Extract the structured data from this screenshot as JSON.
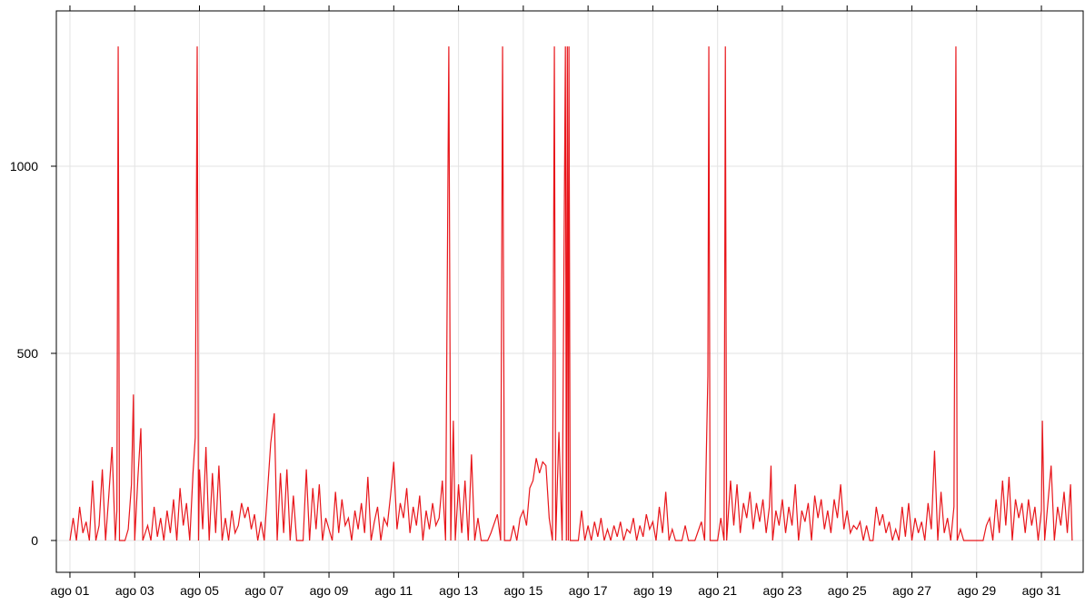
{
  "chart_data": {
    "type": "line",
    "color": "#e8161b",
    "grid": true,
    "xlim": [
      0.58,
      32.29
    ],
    "ylim": [
      -85,
      1415
    ],
    "xticks": [
      {
        "value": 1,
        "label": "ago 01"
      },
      {
        "value": 3,
        "label": "ago 03"
      },
      {
        "value": 5,
        "label": "ago 05"
      },
      {
        "value": 7,
        "label": "ago 07"
      },
      {
        "value": 9,
        "label": "ago 09"
      },
      {
        "value": 11,
        "label": "ago 11"
      },
      {
        "value": 13,
        "label": "ago 13"
      },
      {
        "value": 15,
        "label": "ago 15"
      },
      {
        "value": 17,
        "label": "ago 17"
      },
      {
        "value": 19,
        "label": "ago 19"
      },
      {
        "value": 21,
        "label": "ago 21"
      },
      {
        "value": 23,
        "label": "ago 23"
      },
      {
        "value": 25,
        "label": "ago 25"
      },
      {
        "value": 27,
        "label": "ago 27"
      },
      {
        "value": 29,
        "label": "ago 29"
      },
      {
        "value": 31,
        "label": "ago 31"
      }
    ],
    "yticks": [
      0,
      500,
      1000
    ],
    "x": [
      1,
      1.1,
      1.2,
      1.3,
      1.4,
      1.5,
      1.6,
      1.7,
      1.8,
      1.9,
      2,
      2.1,
      2.2,
      2.3,
      2.4,
      2.45,
      2.49,
      2.53,
      2.7,
      2.8,
      2.9,
      2.96,
      3,
      3.1,
      3.19,
      3.25,
      3.4,
      3.5,
      3.6,
      3.7,
      3.8,
      3.9,
      4,
      4.1,
      4.2,
      4.3,
      4.4,
      4.5,
      4.6,
      4.7,
      4.8,
      4.87,
      4.93,
      4.97,
      5,
      5.1,
      5.2,
      5.3,
      5.4,
      5.5,
      5.6,
      5.7,
      5.8,
      5.9,
      6,
      6.1,
      6.2,
      6.3,
      6.4,
      6.5,
      6.6,
      6.7,
      6.8,
      6.9,
      7,
      7.2,
      7.31,
      7.4,
      7.5,
      7.6,
      7.7,
      7.8,
      7.9,
      8,
      8.2,
      8.3,
      8.4,
      8.5,
      8.6,
      8.7,
      8.8,
      8.9,
      9,
      9.1,
      9.2,
      9.3,
      9.4,
      9.5,
      9.6,
      9.7,
      9.8,
      9.9,
      10,
      10.1,
      10.2,
      10.3,
      10.4,
      10.5,
      10.6,
      10.7,
      10.8,
      10.9,
      11,
      11.1,
      11.2,
      11.3,
      11.4,
      11.5,
      11.6,
      11.7,
      11.8,
      11.9,
      12,
      12.1,
      12.2,
      12.3,
      12.4,
      12.5,
      12.6,
      12.7,
      12.76,
      12.84,
      12.9,
      13,
      13.1,
      13.2,
      13.3,
      13.4,
      13.5,
      13.6,
      13.7,
      13.9,
      14,
      14.2,
      14.3,
      14.36,
      14.42,
      14.6,
      14.7,
      14.8,
      14.9,
      15,
      15.1,
      15.2,
      15.3,
      15.4,
      15.5,
      15.6,
      15.7,
      15.8,
      15.9,
      15.96,
      16,
      16.1,
      16.2,
      16.3,
      16.33,
      16.36,
      16.39,
      16.41,
      16.45,
      16.6,
      16.7,
      16.8,
      16.9,
      17,
      17.1,
      17.2,
      17.3,
      17.4,
      17.5,
      17.6,
      17.7,
      17.8,
      17.9,
      18,
      18.1,
      18.2,
      18.3,
      18.4,
      18.5,
      18.6,
      18.7,
      18.8,
      18.9,
      19,
      19.1,
      19.2,
      19.3,
      19.4,
      19.5,
      19.6,
      19.7,
      19.9,
      20,
      20.1,
      20.3,
      20.5,
      20.6,
      20.7,
      20.73,
      20.77,
      21,
      21.1,
      21.2,
      21.24,
      21.28,
      21.4,
      21.5,
      21.6,
      21.7,
      21.8,
      21.9,
      22,
      22.1,
      22.2,
      22.3,
      22.4,
      22.5,
      22.6,
      22.65,
      22.7,
      22.8,
      22.9,
      23,
      23.1,
      23.2,
      23.3,
      23.4,
      23.5,
      23.6,
      23.7,
      23.8,
      23.9,
      24,
      24.1,
      24.2,
      24.3,
      24.4,
      24.5,
      24.6,
      24.7,
      24.8,
      24.9,
      25,
      25.1,
      25.2,
      25.3,
      25.4,
      25.5,
      25.6,
      25.7,
      25.8,
      25.9,
      26,
      26.1,
      26.2,
      26.3,
      26.4,
      26.5,
      26.6,
      26.7,
      26.8,
      26.9,
      27,
      27.1,
      27.2,
      27.3,
      27.4,
      27.5,
      27.6,
      27.7,
      27.8,
      27.9,
      28,
      28.1,
      28.2,
      28.3,
      28.36,
      28.4,
      28.5,
      28.6,
      29.2,
      29.3,
      29.4,
      29.5,
      29.6,
      29.7,
      29.8,
      29.9,
      30,
      30.1,
      30.2,
      30.3,
      30.4,
      30.5,
      30.6,
      30.7,
      30.8,
      30.9,
      31,
      31.03,
      31.1,
      31.2,
      31.3,
      31.4,
      31.5,
      31.6,
      31.7,
      31.8,
      31.9,
      31.95
    ],
    "values": [
      0,
      60,
      0,
      90,
      20,
      50,
      0,
      160,
      0,
      40,
      190,
      0,
      120,
      250,
      0,
      80,
      1320,
      0,
      0,
      30,
      150,
      390,
      0,
      170,
      300,
      0,
      40,
      0,
      90,
      10,
      60,
      0,
      80,
      20,
      110,
      0,
      140,
      40,
      100,
      0,
      180,
      275,
      1320,
      0,
      190,
      30,
      250,
      0,
      180,
      20,
      200,
      0,
      60,
      0,
      80,
      20,
      40,
      100,
      60,
      90,
      30,
      70,
      0,
      50,
      0,
      260,
      340,
      0,
      180,
      20,
      190,
      0,
      120,
      0,
      0,
      190,
      0,
      140,
      30,
      150,
      0,
      60,
      30,
      0,
      130,
      20,
      110,
      40,
      60,
      0,
      80,
      30,
      100,
      20,
      170,
      0,
      50,
      90,
      0,
      60,
      40,
      120,
      210,
      30,
      100,
      60,
      140,
      20,
      90,
      40,
      120,
      0,
      80,
      30,
      100,
      40,
      60,
      160,
      0,
      1320,
      0,
      320,
      0,
      150,
      20,
      160,
      0,
      230,
      0,
      60,
      0,
      0,
      20,
      70,
      0,
      1320,
      0,
      0,
      40,
      0,
      60,
      80,
      40,
      140,
      160,
      220,
      180,
      210,
      200,
      60,
      0,
      1320,
      0,
      290,
      0,
      1320,
      0,
      1320,
      0,
      1320,
      0,
      0,
      0,
      80,
      0,
      40,
      0,
      50,
      10,
      60,
      0,
      30,
      0,
      40,
      10,
      50,
      0,
      30,
      20,
      60,
      0,
      40,
      10,
      70,
      30,
      50,
      0,
      90,
      20,
      130,
      0,
      30,
      0,
      0,
      40,
      0,
      0,
      50,
      0,
      440,
      1320,
      0,
      0,
      60,
      0,
      1320,
      0,
      160,
      40,
      150,
      20,
      100,
      60,
      130,
      30,
      100,
      50,
      110,
      20,
      90,
      200,
      0,
      80,
      40,
      110,
      20,
      90,
      40,
      150,
      0,
      80,
      50,
      100,
      0,
      120,
      60,
      110,
      30,
      80,
      20,
      110,
      60,
      150,
      30,
      80,
      20,
      40,
      30,
      50,
      0,
      40,
      0,
      0,
      90,
      40,
      70,
      20,
      50,
      0,
      30,
      0,
      90,
      10,
      100,
      0,
      60,
      20,
      50,
      0,
      100,
      30,
      240,
      0,
      130,
      20,
      60,
      0,
      90,
      1320,
      0,
      30,
      0,
      0,
      40,
      60,
      0,
      110,
      20,
      160,
      40,
      170,
      0,
      110,
      60,
      100,
      20,
      110,
      40,
      90,
      0,
      80,
      320,
      0,
      100,
      200,
      0,
      90,
      40,
      130,
      20,
      150,
      0
    ]
  }
}
